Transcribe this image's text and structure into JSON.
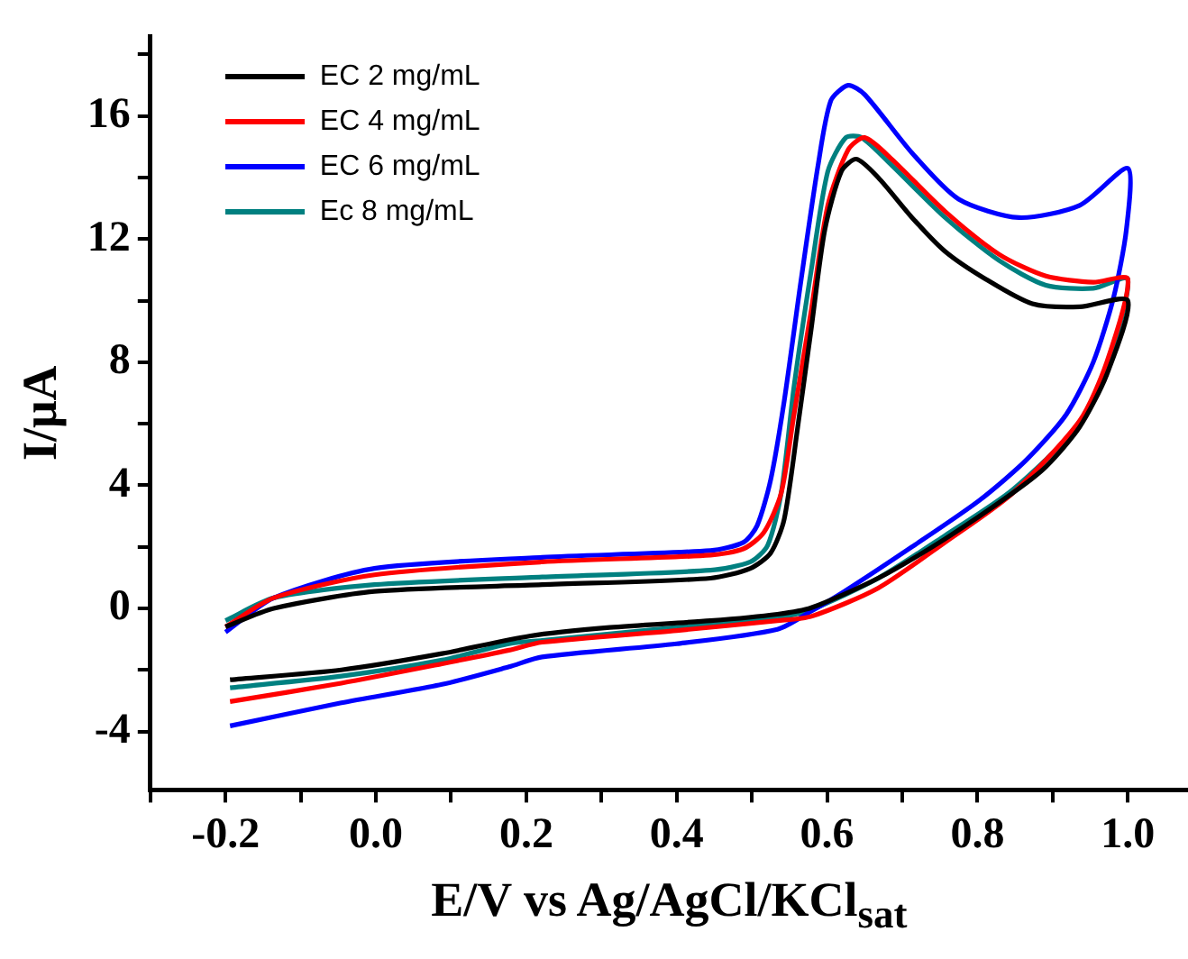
{
  "chart_data": {
    "type": "line",
    "xlabel": "E/V vs Ag/AgCl/KCl$_{sat}$",
    "ylabel": "I/μA",
    "xlim": [
      -0.3,
      1.08
    ],
    "ylim": [
      -5.9,
      18.6
    ],
    "xticks": [
      {
        "value": -0.3,
        "label": null
      },
      -0.2,
      {
        "value": -0.1,
        "label": null
      },
      {
        "value": 0,
        "label": "0.0"
      },
      {
        "value": 0.1,
        "label": null
      },
      0.2,
      {
        "value": 0.3,
        "label": null
      },
      0.4,
      {
        "value": 0.5,
        "label": null
      },
      0.6,
      {
        "value": 0.7,
        "label": null
      },
      0.8,
      {
        "value": 0.9,
        "label": null
      },
      {
        "value": 1,
        "label": "1.0"
      }
    ],
    "yticks": [
      -4,
      {
        "value": -2,
        "label": null
      },
      0,
      {
        "value": 2,
        "label": null
      },
      4,
      {
        "value": 6,
        "label": null
      },
      8,
      {
        "value": 10,
        "label": null
      },
      12,
      {
        "value": 14,
        "label": null
      },
      16,
      {
        "value": 18,
        "label": null
      }
    ],
    "grid": false,
    "legend": "top left",
    "marker": "none",
    "line_style": "solid",
    "series": [
      {
        "name": "EC 2 mg/mL",
        "color": "#000000",
        "x": [
          -0.2,
          -0.136,
          -0.002,
          0.221,
          0.445,
          0.498,
          0.525,
          0.543,
          0.561,
          0.579,
          0.597,
          0.619,
          0.639,
          0.668,
          0.713,
          0.757,
          0.811,
          0.873,
          0.936,
          1.0,
          0.972,
          0.936,
          0.891,
          0.847,
          0.757,
          0.668,
          0.579,
          0.534,
          0.445,
          0.311,
          0.204,
          0.088,
          -0.046,
          -0.194
        ],
        "values": [
          -0.6,
          0,
          0.55,
          0.77,
          0.98,
          1.3,
          1.8,
          2.9,
          5.9,
          9.1,
          12.3,
          14.2,
          14.6,
          14.0,
          12.7,
          11.6,
          10.7,
          9.9,
          9.8,
          10.0,
          7.6,
          5.9,
          4.6,
          3.75,
          2.26,
          0.98,
          0.02,
          -0.19,
          -0.4,
          -0.62,
          -0.9,
          -1.47,
          -2.0,
          -2.32
        ]
      },
      {
        "name": "EC 4 mg/mL",
        "color": "#ff0000",
        "x": [
          -0.2,
          -0.136,
          -0.002,
          0.221,
          0.445,
          0.489,
          0.516,
          0.539,
          0.556,
          0.579,
          0.601,
          0.628,
          0.65,
          0.686,
          0.757,
          0.829,
          0.891,
          0.954,
          1.0,
          0.972,
          0.936,
          0.847,
          0.757,
          0.668,
          0.579,
          0.534,
          0.4,
          0.221,
          0.177,
          0.088,
          -0.046,
          -0.194
        ],
        "values": [
          -0.6,
          0.34,
          1.09,
          1.51,
          1.73,
          1.94,
          2.47,
          3.75,
          6.3,
          9.7,
          13.1,
          14.9,
          15.3,
          14.6,
          12.9,
          11.5,
          10.8,
          10.6,
          10.7,
          8.0,
          6.1,
          3.75,
          2.15,
          0.66,
          -0.26,
          -0.4,
          -0.72,
          -1.1,
          -1.36,
          -1.8,
          -2.43,
          -3.03
        ]
      },
      {
        "name": "EC 6 mg/mL",
        "color": "#0000ff",
        "x": [
          -0.2,
          -0.136,
          -0.002,
          0.221,
          0.445,
          0.489,
          0.507,
          0.525,
          0.543,
          0.565,
          0.588,
          0.605,
          0.628,
          0.65,
          0.713,
          0.775,
          0.855,
          0.936,
          1.0,
          0.998,
          0.981,
          0.954,
          0.918,
          0.864,
          0.802,
          0.713,
          0.623,
          0.579,
          0.534,
          0.4,
          0.221,
          0.177,
          0.088,
          -0.046,
          -0.194
        ],
        "values": [
          -0.77,
          0.34,
          1.3,
          1.66,
          1.88,
          2.15,
          2.69,
          4.18,
          6.74,
          10.6,
          14.4,
          16.5,
          17.0,
          16.7,
          14.8,
          13.3,
          12.7,
          13.1,
          14.3,
          12.3,
          10.1,
          8.0,
          6.3,
          4.8,
          3.5,
          2.0,
          0.55,
          -0.09,
          -0.68,
          -1.15,
          -1.58,
          -1.9,
          -2.47,
          -3.07,
          -3.82
        ]
      },
      {
        "name": "Ec 8 mg/mL",
        "color": "#008080",
        "x": [
          -0.2,
          -0.136,
          -0.002,
          0.221,
          0.445,
          0.498,
          0.521,
          0.539,
          0.556,
          0.579,
          0.601,
          0.625,
          0.646,
          0.686,
          0.757,
          0.829,
          0.891,
          0.954,
          1.0,
          0.972,
          0.936,
          0.847,
          0.757,
          0.668,
          0.579,
          0.534,
          0.4,
          0.221,
          0.177,
          0.088,
          -0.046,
          -0.194
        ],
        "values": [
          -0.4,
          0.34,
          0.77,
          1.02,
          1.24,
          1.51,
          2.05,
          3.75,
          7.2,
          11.0,
          14.2,
          15.3,
          15.3,
          14.4,
          12.7,
          11.3,
          10.5,
          10.4,
          10.7,
          7.8,
          6.0,
          3.86,
          2.37,
          0.98,
          -0.04,
          -0.3,
          -0.62,
          -1.04,
          -1.15,
          -1.68,
          -2.2,
          -2.58
        ]
      }
    ]
  }
}
